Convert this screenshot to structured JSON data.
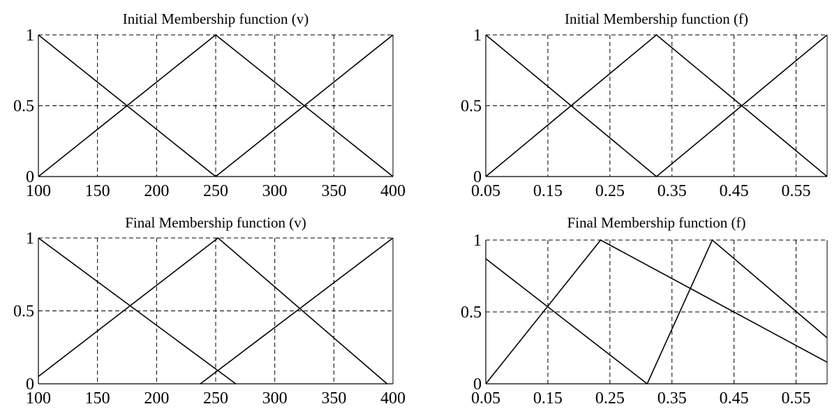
{
  "chart_data": [
    {
      "type": "line",
      "title": "Initial Membership function (v)",
      "xlabel": "",
      "ylabel": "",
      "xlim": [
        100,
        400
      ],
      "ylim": [
        0,
        1
      ],
      "xticks": [
        100,
        150,
        200,
        250,
        300,
        350,
        400
      ],
      "xtick_labels": [
        "100",
        "150",
        "200",
        "250",
        "300",
        "350",
        "400"
      ],
      "yticks": [
        0,
        0.5,
        1
      ],
      "ytick_labels": [
        "0",
        "0.5",
        "1"
      ],
      "grid": true,
      "series": [
        {
          "x": [
            100,
            250
          ],
          "y": [
            1,
            0
          ]
        },
        {
          "x": [
            100,
            250,
            400
          ],
          "y": [
            0,
            1,
            0
          ]
        },
        {
          "x": [
            250,
            400
          ],
          "y": [
            0,
            1
          ]
        }
      ]
    },
    {
      "type": "line",
      "title": "Initial Membership function (f)",
      "xlabel": "",
      "ylabel": "",
      "xlim": [
        0.05,
        0.6
      ],
      "ylim": [
        0,
        1
      ],
      "xticks": [
        0.05,
        0.15,
        0.25,
        0.35,
        0.45,
        0.55
      ],
      "xtick_labels": [
        "0.05",
        "0.15",
        "0.25",
        "0.35",
        "0.45",
        "0.55"
      ],
      "yticks": [
        0,
        0.5,
        1
      ],
      "ytick_labels": [
        "0",
        "0.5",
        "1"
      ],
      "grid": true,
      "series": [
        {
          "x": [
            0.05,
            0.325
          ],
          "y": [
            1,
            0
          ]
        },
        {
          "x": [
            0.05,
            0.325,
            0.6
          ],
          "y": [
            0,
            1,
            0
          ]
        },
        {
          "x": [
            0.325,
            0.6
          ],
          "y": [
            0,
            1
          ]
        }
      ]
    },
    {
      "type": "line",
      "title": "Final Membership function (v)",
      "xlabel": "",
      "ylabel": "",
      "xlim": [
        100,
        400
      ],
      "ylim": [
        0,
        1
      ],
      "xticks": [
        100,
        150,
        200,
        250,
        300,
        350,
        400
      ],
      "xtick_labels": [
        "100",
        "150",
        "200",
        "250",
        "300",
        "350",
        "400"
      ],
      "yticks": [
        0,
        0.5,
        1
      ],
      "ytick_labels": [
        "0",
        "0.5",
        "1"
      ],
      "grid": true,
      "series": [
        {
          "x": [
            100,
            267
          ],
          "y": [
            1,
            0
          ]
        },
        {
          "x": [
            100,
            252,
            395
          ],
          "y": [
            0.05,
            1,
            0
          ]
        },
        {
          "x": [
            237,
            400
          ],
          "y": [
            0,
            1
          ]
        }
      ]
    },
    {
      "type": "line",
      "title": "Final Membership function (f)",
      "xlabel": "",
      "ylabel": "",
      "xlim": [
        0.05,
        0.6
      ],
      "ylim": [
        0,
        1
      ],
      "xticks": [
        0.05,
        0.15,
        0.25,
        0.35,
        0.45,
        0.55
      ],
      "xtick_labels": [
        "0.05",
        "0.15",
        "0.25",
        "0.35",
        "0.45",
        "0.55"
      ],
      "yticks": [
        0,
        0.5,
        1
      ],
      "ytick_labels": [
        "0",
        "0.5",
        "1"
      ],
      "grid": true,
      "series": [
        {
          "x": [
            0.05,
            0.31
          ],
          "y": [
            0.87,
            0
          ]
        },
        {
          "x": [
            0.05,
            0.235,
            0.6
          ],
          "y": [
            0,
            1,
            0.15
          ]
        },
        {
          "x": [
            0.31,
            0.415,
            0.6
          ],
          "y": [
            0,
            1,
            0.32
          ]
        }
      ]
    }
  ]
}
